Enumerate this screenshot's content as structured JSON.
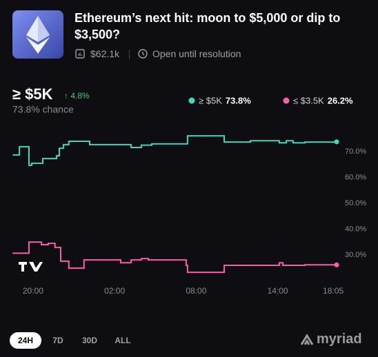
{
  "header": {
    "title": "Ethereum’s next hit: moon to $5,000 or dip to $3,500?",
    "volume": "$62.1k",
    "status": "Open until resolution"
  },
  "chart_data": {
    "type": "line",
    "title": "≥ $5K",
    "change": "↑ 4.8%",
    "subtitle": "73.8% chance",
    "x": [
      "18:30",
      "19:00",
      "19:36",
      "19:42",
      "19:54",
      "20:37",
      "20:43",
      "21:07",
      "21:37",
      "21:44",
      "21:56",
      "22:02",
      "22:14",
      "22:38",
      "23:45",
      "00:10",
      "02:12",
      "02:27",
      "03:13",
      "03:58",
      "04:29",
      "04:44",
      "07:16",
      "07:22",
      "10:04",
      "12:00",
      "14:07",
      "14:23",
      "14:38",
      "15:08",
      "16:00",
      "18:20"
    ],
    "series": [
      {
        "name": "≥ $5K",
        "color": "#3ed8bf",
        "current_label": "73.8%",
        "values": [
          68.7,
          71.9,
          71.9,
          64.7,
          65.5,
          65.5,
          67.3,
          67.3,
          67.3,
          68.4,
          71.3,
          71.3,
          72.7,
          74.0,
          74.0,
          72.7,
          72.7,
          72.7,
          71.6,
          72.5,
          72.5,
          73.0,
          73.0,
          76.1,
          73.7,
          74.2,
          73.4,
          73.4,
          74.2,
          73.4,
          73.7,
          73.8
        ]
      },
      {
        "name": "≤ $3.5K",
        "color": "#ff5cad",
        "current_label": "26.2%",
        "values": [
          30.7,
          30.7,
          30.7,
          35.0,
          35.0,
          34.0,
          34.0,
          34.5,
          32.9,
          32.9,
          32.9,
          27.6,
          27.6,
          24.9,
          28.1,
          28.1,
          28.1,
          27.0,
          28.1,
          28.6,
          28.1,
          28.1,
          26.0,
          23.3,
          26.0,
          26.0,
          27.0,
          26.0,
          26.0,
          26.0,
          26.2,
          26.2
        ]
      }
    ],
    "xlim": [
      "18:29",
      "18:20"
    ],
    "xticks": [
      "20:00",
      "02:00",
      "08:00",
      "14:00",
      "18:05"
    ],
    "ylim": [
      22,
      78
    ],
    "yticks": [
      {
        "value": 30,
        "label": "30.0%"
      },
      {
        "value": 40,
        "label": "40.0%"
      },
      {
        "value": 50,
        "label": "50.0%"
      },
      {
        "value": 60,
        "label": "60.0%"
      },
      {
        "value": 70,
        "label": "70.0%"
      }
    ],
    "grid": false,
    "step": true
  },
  "footer": {
    "tabs": [
      "24H",
      "7D",
      "30D",
      "ALL"
    ],
    "active_tab": 0,
    "brand": "myriad"
  }
}
